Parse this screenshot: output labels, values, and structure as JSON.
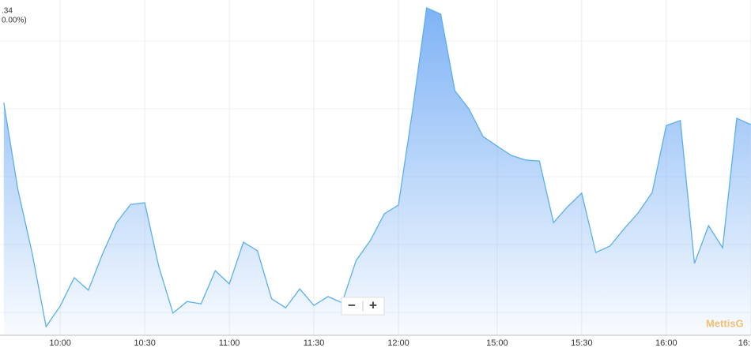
{
  "chart_data": {
    "type": "area",
    "header_lines": [
      ".34",
      "0.00%)"
    ],
    "categories": [
      null,
      null,
      null,
      null,
      "10:00",
      null,
      null,
      null,
      null,
      null,
      "10:30",
      null,
      null,
      null,
      null,
      null,
      "11:00",
      null,
      null,
      null,
      null,
      null,
      "11:30",
      null,
      null,
      null,
      null,
      null,
      "12:00",
      null,
      null,
      null,
      null,
      null,
      null,
      "15:00",
      null,
      null,
      null,
      null,
      null,
      "15:30",
      null,
      null,
      null,
      null,
      null,
      "16:00",
      null,
      null,
      null,
      null,
      null,
      "16:"
    ],
    "values": [
      70.2,
      44.0,
      25.0,
      2.6,
      8.8,
      17.4,
      13.6,
      24.5,
      34.0,
      39.5,
      40.0,
      20.7,
      6.7,
      10.2,
      9.5,
      19.5,
      15.5,
      28.1,
      25.5,
      11.0,
      8.3,
      14.0,
      9.0,
      11.7,
      9.8,
      22.6,
      28.6,
      36.7,
      39.3,
      67.9,
      98.8,
      96.9,
      73.8,
      68.3,
      60.0,
      57.1,
      54.3,
      52.9,
      52.6,
      34.0,
      38.8,
      42.9,
      25.0,
      26.9,
      32.1,
      36.9,
      43.1,
      63.3,
      64.8,
      21.7,
      33.1,
      26.4,
      65.5,
      63.6
    ],
    "ylim": [
      0,
      100
    ],
    "color": "#5ab0ee",
    "grid": true,
    "zoom_controls": [
      "−",
      "+"
    ],
    "watermark": "MettisG"
  }
}
